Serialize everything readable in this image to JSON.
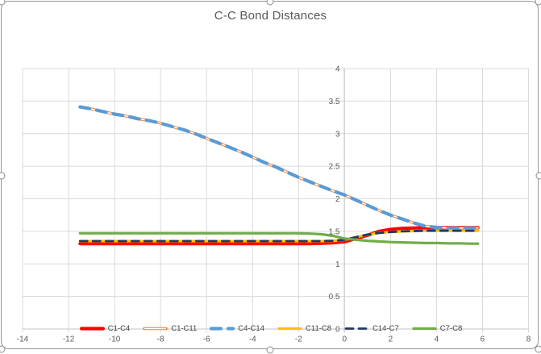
{
  "chart_data": {
    "type": "line",
    "title": "C-C Bond Distances",
    "xlabel": "",
    "ylabel": "",
    "grid": true,
    "legend_position": "bottom",
    "x_axis": {
      "min": -14,
      "max": 8,
      "tick_step": 2,
      "tick_values": [
        -14,
        -12,
        -10,
        -8,
        -6,
        -4,
        -2,
        0,
        2,
        4,
        6,
        8
      ],
      "tick_labels": [
        "-14",
        "-12",
        "-10",
        "-8",
        "-6",
        "-4",
        "-2",
        "0",
        "2",
        "4",
        "6",
        "8"
      ]
    },
    "y_axis": {
      "min": 0,
      "max": 4,
      "tick_step": 0.5,
      "tick_values": [
        0,
        0.5,
        1,
        1.5,
        2,
        2.5,
        3,
        3.5,
        4
      ],
      "tick_labels": [
        "0",
        "0.5",
        "1",
        "1.5",
        "2",
        "2.5",
        "3",
        "3.5",
        "4"
      ]
    },
    "series": [
      {
        "name": "C1-C4",
        "color": "#FF0000",
        "style": "solid",
        "width": 4.2,
        "points": [
          [
            -11.5,
            1.31
          ],
          [
            -8,
            1.31
          ],
          [
            -5,
            1.31
          ],
          [
            -2,
            1.31
          ],
          [
            -1.5,
            1.312
          ],
          [
            -1,
            1.316
          ],
          [
            -0.5,
            1.325
          ],
          [
            0,
            1.34
          ],
          [
            0.5,
            1.39
          ],
          [
            1,
            1.44
          ],
          [
            1.5,
            1.5
          ],
          [
            2,
            1.53
          ],
          [
            2.5,
            1.545
          ],
          [
            3,
            1.55
          ],
          [
            3.5,
            1.555
          ],
          [
            4,
            1.555
          ],
          [
            4.5,
            1.555
          ],
          [
            5,
            1.555
          ],
          [
            5.5,
            1.555
          ],
          [
            5.8,
            1.555
          ]
        ]
      },
      {
        "name": "C1-C11",
        "color": "#ED7D31",
        "style": "double",
        "width": 3.4,
        "points": [
          [
            -11.5,
            3.41
          ],
          [
            -11,
            3.38
          ],
          [
            -10.5,
            3.34
          ],
          [
            -10,
            3.3
          ],
          [
            -9.5,
            3.27
          ],
          [
            -9,
            3.23
          ],
          [
            -8.5,
            3.2
          ],
          [
            -8,
            3.16
          ],
          [
            -7.5,
            3.11
          ],
          [
            -7,
            3.06
          ],
          [
            -6.5,
            3.0
          ],
          [
            -6,
            2.93
          ],
          [
            -5.5,
            2.86
          ],
          [
            -5,
            2.79
          ],
          [
            -4.5,
            2.72
          ],
          [
            -4,
            2.64
          ],
          [
            -3.5,
            2.56
          ],
          [
            -3,
            2.49
          ],
          [
            -2.5,
            2.41
          ],
          [
            -2,
            2.33
          ],
          [
            -1.5,
            2.26
          ],
          [
            -1,
            2.19
          ],
          [
            -0.5,
            2.12
          ],
          [
            0,
            2.06
          ],
          [
            0.5,
            1.98
          ],
          [
            1,
            1.9
          ],
          [
            1.5,
            1.82
          ],
          [
            2,
            1.75
          ],
          [
            2.5,
            1.69
          ],
          [
            3,
            1.63
          ],
          [
            3.5,
            1.58
          ],
          [
            4,
            1.56
          ],
          [
            4.5,
            1.55
          ],
          [
            5,
            1.55
          ],
          [
            5.5,
            1.55
          ],
          [
            5.8,
            1.55
          ]
        ]
      },
      {
        "name": "C4-C14",
        "color": "#5B9BD5",
        "style": "dash",
        "dash": "12 9",
        "width": 4.2,
        "points": [
          [
            -11.5,
            3.41
          ],
          [
            -11,
            3.38
          ],
          [
            -10.5,
            3.34
          ],
          [
            -10,
            3.3
          ],
          [
            -9.5,
            3.27
          ],
          [
            -9,
            3.23
          ],
          [
            -8.5,
            3.2
          ],
          [
            -8,
            3.16
          ],
          [
            -7.5,
            3.11
          ],
          [
            -7,
            3.06
          ],
          [
            -6.5,
            3.0
          ],
          [
            -6,
            2.93
          ],
          [
            -5.5,
            2.86
          ],
          [
            -5,
            2.79
          ],
          [
            -4.5,
            2.72
          ],
          [
            -4,
            2.64
          ],
          [
            -3.5,
            2.56
          ],
          [
            -3,
            2.49
          ],
          [
            -2.5,
            2.41
          ],
          [
            -2,
            2.33
          ],
          [
            -1.5,
            2.26
          ],
          [
            -1,
            2.19
          ],
          [
            -0.5,
            2.12
          ],
          [
            0,
            2.06
          ],
          [
            0.5,
            1.98
          ],
          [
            1,
            1.9
          ],
          [
            1.5,
            1.82
          ],
          [
            2,
            1.75
          ],
          [
            2.5,
            1.69
          ],
          [
            3,
            1.63
          ],
          [
            3.5,
            1.58
          ],
          [
            4,
            1.56
          ],
          [
            4.5,
            1.55
          ],
          [
            5,
            1.55
          ],
          [
            5.5,
            1.55
          ],
          [
            5.8,
            1.55
          ]
        ]
      },
      {
        "name": "C11-C8",
        "color": "#FFC000",
        "style": "solid",
        "width": 3.2,
        "points": [
          [
            -11.5,
            1.35
          ],
          [
            -8,
            1.35
          ],
          [
            -5,
            1.35
          ],
          [
            -2,
            1.35
          ],
          [
            -1,
            1.35
          ],
          [
            -0.5,
            1.355
          ],
          [
            0,
            1.37
          ],
          [
            0.5,
            1.41
          ],
          [
            1,
            1.45
          ],
          [
            1.5,
            1.475
          ],
          [
            2,
            1.49
          ],
          [
            2.5,
            1.5
          ],
          [
            3,
            1.505
          ],
          [
            3.5,
            1.51
          ],
          [
            4,
            1.51
          ],
          [
            4.5,
            1.51
          ],
          [
            5,
            1.51
          ],
          [
            5.5,
            1.51
          ],
          [
            5.8,
            1.51
          ]
        ]
      },
      {
        "name": "C14-C7",
        "color": "#1F3864",
        "style": "dash",
        "dash": "9 7",
        "width": 2.8,
        "points": [
          [
            -11.5,
            1.35
          ],
          [
            -8,
            1.35
          ],
          [
            -5,
            1.35
          ],
          [
            -2,
            1.35
          ],
          [
            -1,
            1.35
          ],
          [
            -0.5,
            1.355
          ],
          [
            0,
            1.37
          ],
          [
            0.5,
            1.41
          ],
          [
            1,
            1.45
          ],
          [
            1.5,
            1.475
          ],
          [
            2,
            1.49
          ],
          [
            2.5,
            1.5
          ],
          [
            3,
            1.505
          ],
          [
            3.5,
            1.51
          ],
          [
            4,
            1.51
          ],
          [
            4.5,
            1.51
          ],
          [
            5,
            1.51
          ],
          [
            5.5,
            1.51
          ],
          [
            5.8,
            1.51
          ]
        ]
      },
      {
        "name": "C7-C8",
        "color": "#70AD47",
        "style": "solid",
        "width": 3.2,
        "points": [
          [
            -11.5,
            1.47
          ],
          [
            -8,
            1.47
          ],
          [
            -5,
            1.47
          ],
          [
            -2,
            1.47
          ],
          [
            -1.5,
            1.465
          ],
          [
            -1,
            1.455
          ],
          [
            -0.5,
            1.43
          ],
          [
            0,
            1.39
          ],
          [
            0.5,
            1.37
          ],
          [
            1,
            1.355
          ],
          [
            1.5,
            1.345
          ],
          [
            2,
            1.335
          ],
          [
            2.5,
            1.33
          ],
          [
            3,
            1.325
          ],
          [
            3.5,
            1.32
          ],
          [
            4,
            1.32
          ],
          [
            4.5,
            1.315
          ],
          [
            5,
            1.315
          ],
          [
            5.5,
            1.31
          ],
          [
            5.8,
            1.31
          ]
        ]
      }
    ],
    "legend": [
      "C1-C4",
      "C1-C11",
      "C4-C14",
      "C11-C8",
      "C14-C7",
      "C7-C8"
    ]
  },
  "colors": {
    "grid": "#D9D9D9",
    "axis": "#C6C6C6",
    "tick_label": "#595959",
    "title": "#595959",
    "frame_border": "#969696"
  },
  "selection": {
    "handles": 8,
    "selected": true
  }
}
